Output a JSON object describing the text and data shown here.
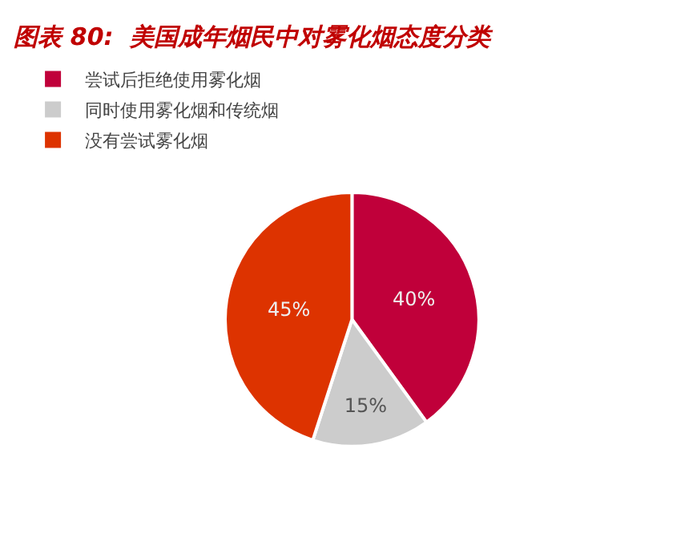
{
  "chart_data": {
    "type": "pie",
    "title": "图表 80:  美国成年烟民中对雾化烟态度分类",
    "categories": [
      "尝试后拒绝使用雾化烟",
      "同时使用雾化烟和传统烟",
      "没有尝试雾化烟"
    ],
    "values": [
      40,
      15,
      45
    ],
    "colors": [
      "#c0003a",
      "#cccccc",
      "#dd3300"
    ],
    "value_labels": [
      "40%",
      "15%",
      "45%"
    ],
    "legend": "top left"
  }
}
